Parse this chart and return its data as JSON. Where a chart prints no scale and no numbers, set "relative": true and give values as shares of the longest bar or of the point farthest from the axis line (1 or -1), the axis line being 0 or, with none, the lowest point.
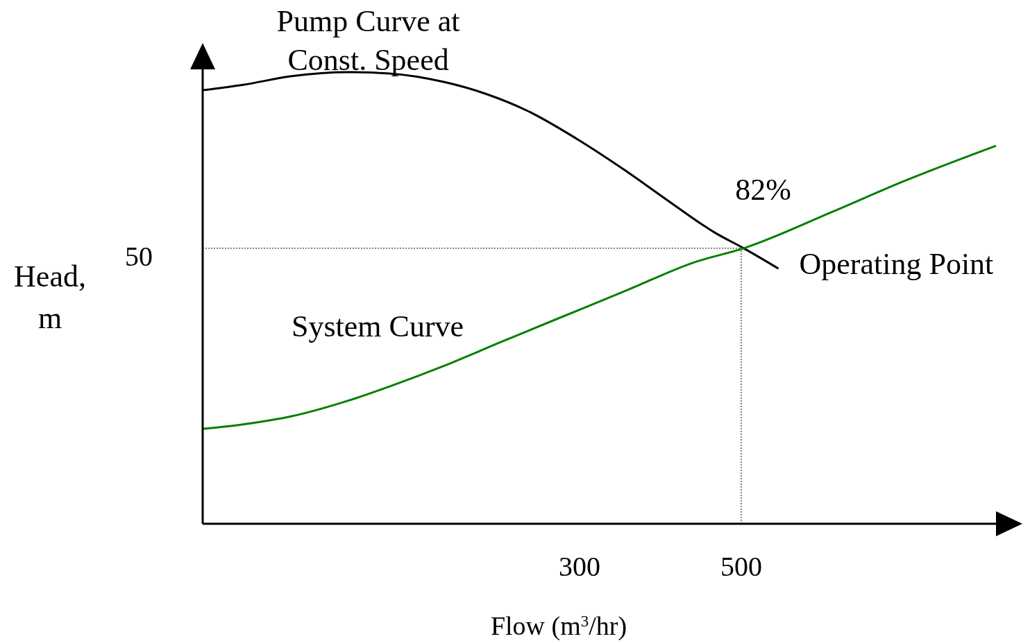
{
  "chart_data": {
    "type": "line",
    "relative": true,
    "xlabel": "Flow (m$^{3}$/hr)",
    "ylabel": "Head, m",
    "xlim": [
      -166,
      815
    ],
    "xticks": [
      300,
      500
    ],
    "line_style": "solid",
    "series": [
      {
        "name": "Pump Curve at Const. Speed",
        "color": "#000000",
        "x": [
          -166,
          -116,
          -56,
          13,
          65,
          133,
          184,
          236,
          296,
          356,
          416,
          467,
          503,
          546
        ],
        "values": [
          0.96,
          0.972,
          0.991,
          1.0,
          0.997,
          0.978,
          0.952,
          0.914,
          0.853,
          0.783,
          0.707,
          0.645,
          0.61,
          0.565
        ]
      },
      {
        "name": "System Curve",
        "color": "#008000",
        "x": [
          -166,
          -116,
          -56,
          13,
          65,
          133,
          201,
          270,
          356,
          442,
          503,
          613,
          699,
          815
        ],
        "values": [
          0.21,
          0.22,
          0.238,
          0.272,
          0.304,
          0.35,
          0.401,
          0.452,
          0.515,
          0.579,
          0.61,
          0.691,
          0.757,
          0.837
        ]
      }
    ],
    "ref_lines": [
      {
        "axis": "y",
        "value": 0.61,
        "label": null,
        "line_style": "dotted"
      },
      {
        "axis": "x",
        "value": 500,
        "label": null,
        "line_style": "dotted"
      }
    ],
    "annotations": [
      {
        "text": "82%",
        "x": 503,
        "y": 0.61
      },
      {
        "text": "Operating Point",
        "x": 503,
        "y": 0.61
      },
      "50"
    ]
  }
}
